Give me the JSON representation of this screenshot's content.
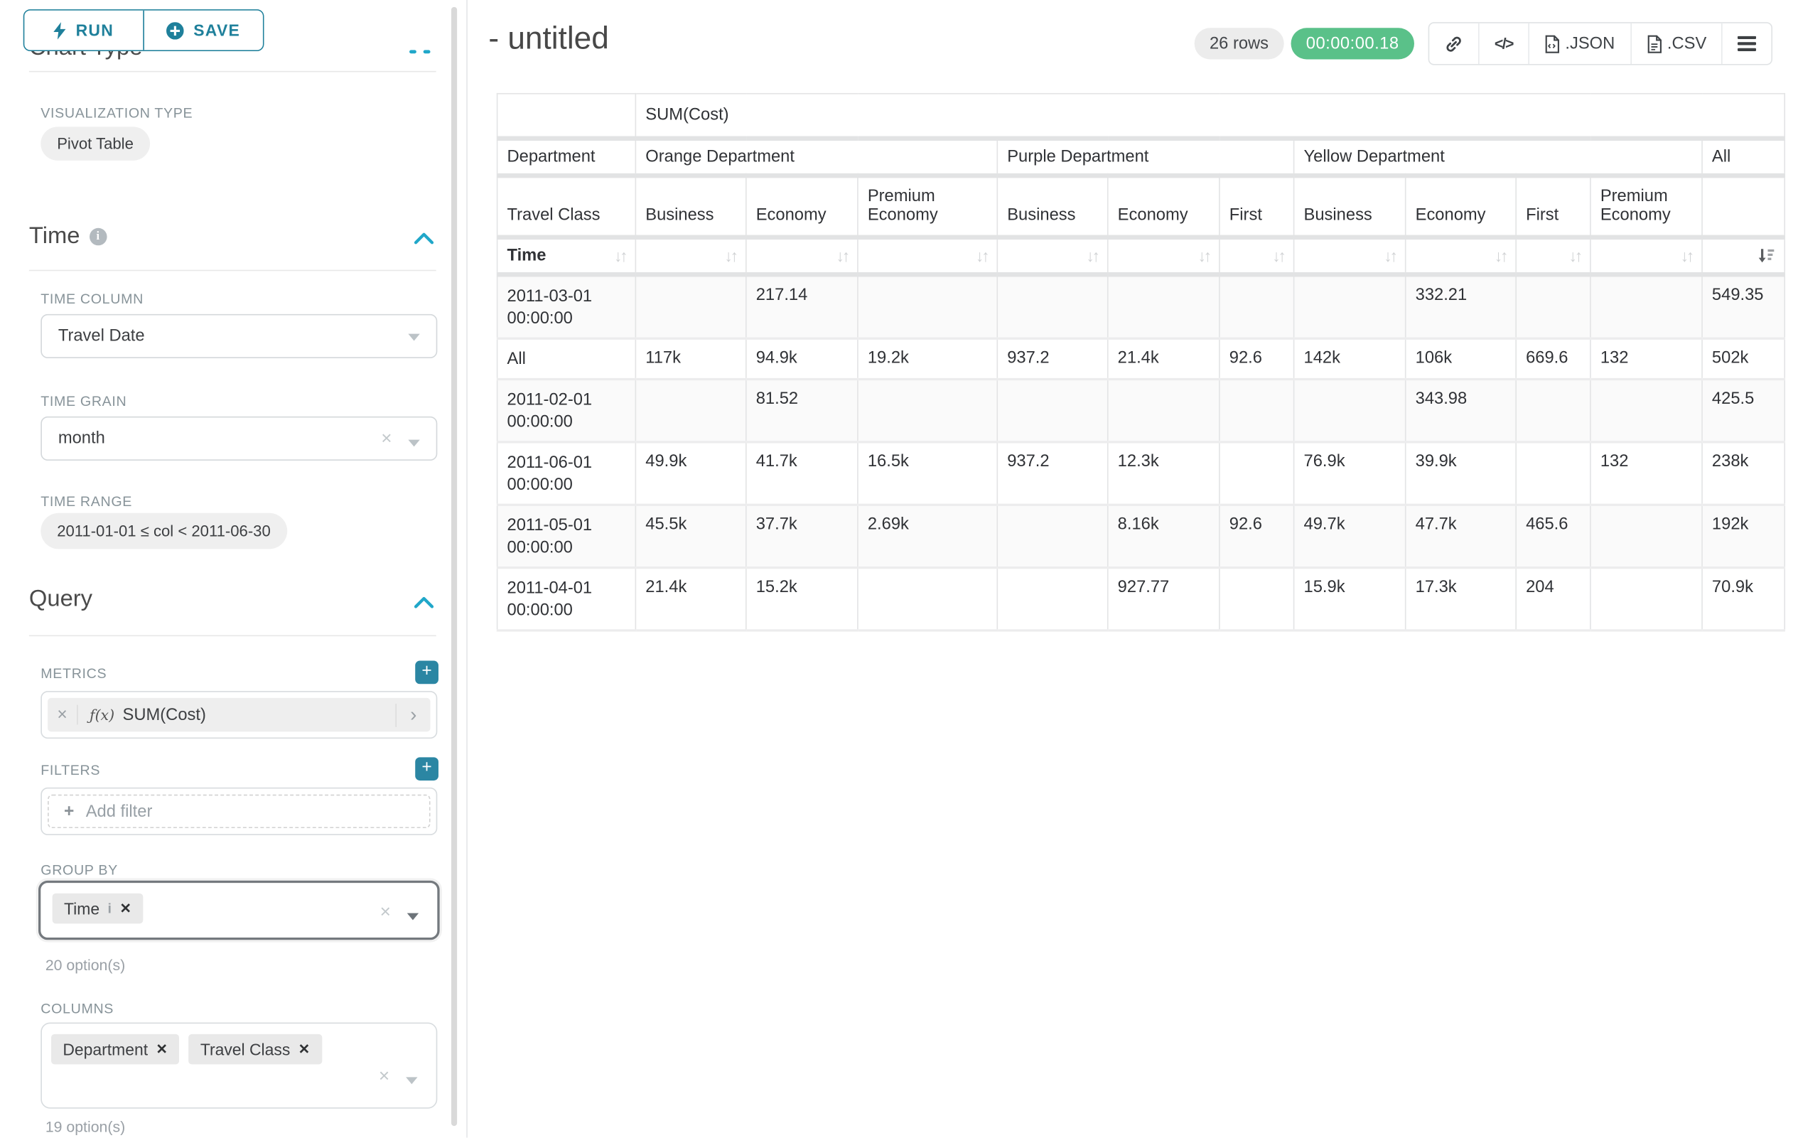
{
  "app": {
    "run_label": "RUN",
    "save_label": "SAVE",
    "section_chart_type": "Chart Type",
    "title": "- untitled",
    "rows_badge": "26 rows",
    "timer": "00:00:00.18",
    "export_json_label": ".JSON",
    "export_csv_label": ".CSV",
    "icons": {
      "run": "bolt",
      "save": "plus-circle",
      "share": "link",
      "embed": "</>",
      "menu": "hamburger",
      "sort_inactive": "↓↑"
    },
    "colors": {
      "primary": "#1F809B",
      "accent": "#20A7C9",
      "success": "#5AC189"
    }
  },
  "sidebar": {
    "viz_type": {
      "label": "VISUALIZATION TYPE",
      "value": "Pivot Table"
    },
    "time": {
      "heading": "Time",
      "time_column": {
        "label": "TIME COLUMN",
        "value": "Travel Date"
      },
      "time_grain": {
        "label": "TIME GRAIN",
        "value": "month"
      },
      "time_range": {
        "label": "TIME RANGE",
        "value": "2011-01-01 ≤ col < 2011-06-30"
      }
    },
    "query": {
      "heading": "Query",
      "metrics": {
        "label": "METRICS",
        "fx": "ƒ(x)",
        "value": "SUM(Cost)"
      },
      "filters": {
        "label": "FILTERS",
        "placeholder": "Add filter"
      },
      "group_by": {
        "label": "GROUP BY",
        "tags": [
          {
            "label": "Time"
          }
        ],
        "options_hint": "20 option(s)"
      },
      "columns": {
        "label": "COLUMNS",
        "tags": [
          {
            "label": "Department"
          },
          {
            "label": "Travel Class"
          }
        ],
        "options_hint": "19 option(s)"
      }
    }
  },
  "table": {
    "metric_header": "SUM(Cost)",
    "corner": {
      "row2": "Department",
      "row3": "Travel Class",
      "row4": "Time"
    },
    "column_groups": [
      {
        "label": "Orange Department",
        "classes": [
          "Business",
          "Economy",
          "Premium Economy"
        ]
      },
      {
        "label": "Purple Department",
        "classes": [
          "Business",
          "Economy",
          "First"
        ]
      },
      {
        "label": "Yellow Department",
        "classes": [
          "Business",
          "Economy",
          "First",
          "Premium Economy"
        ]
      },
      {
        "label": "All",
        "classes": [
          ""
        ]
      }
    ],
    "rows": [
      {
        "label": "2011-03-01 00:00:00",
        "values": [
          "",
          "217.14",
          "",
          "",
          "",
          "",
          "",
          "332.21",
          "",
          "",
          "549.35"
        ]
      },
      {
        "label": "All",
        "values": [
          "117k",
          "94.9k",
          "19.2k",
          "937.2",
          "21.4k",
          "92.6",
          "142k",
          "106k",
          "669.6",
          "132",
          "502k"
        ]
      },
      {
        "label": "2011-02-01 00:00:00",
        "values": [
          "",
          "81.52",
          "",
          "",
          "",
          "",
          "",
          "343.98",
          "",
          "",
          "425.5"
        ]
      },
      {
        "label": "2011-06-01 00:00:00",
        "values": [
          "49.9k",
          "41.7k",
          "16.5k",
          "937.2",
          "12.3k",
          "",
          "76.9k",
          "39.9k",
          "",
          "132",
          "238k"
        ]
      },
      {
        "label": "2011-05-01 00:00:00",
        "values": [
          "45.5k",
          "37.7k",
          "2.69k",
          "",
          "8.16k",
          "92.6",
          "49.7k",
          "47.7k",
          "465.6",
          "",
          "192k"
        ]
      },
      {
        "label": "2011-04-01 00:00:00",
        "values": [
          "21.4k",
          "15.2k",
          "",
          "",
          "927.77",
          "",
          "15.9k",
          "17.3k",
          "204",
          "",
          "70.9k"
        ]
      }
    ]
  },
  "chart_data": {
    "type": "table",
    "title": "SUM(Cost)",
    "row_dimension": "Time",
    "column_dimensions": [
      "Department",
      "Travel Class"
    ],
    "columns": [
      "Orange Department / Business",
      "Orange Department / Economy",
      "Orange Department / Premium Economy",
      "Purple Department / Business",
      "Purple Department / Economy",
      "Purple Department / First",
      "Yellow Department / Business",
      "Yellow Department / Economy",
      "Yellow Department / First",
      "Yellow Department / Premium Economy",
      "All"
    ],
    "rows": [
      [
        "2011-03-01 00:00:00",
        null,
        217.14,
        null,
        null,
        null,
        null,
        null,
        332.21,
        null,
        null,
        549.35
      ],
      [
        "All",
        117000,
        94900,
        19200,
        937.2,
        21400,
        92.6,
        142000,
        106000,
        669.6,
        132,
        502000
      ],
      [
        "2011-02-01 00:00:00",
        null,
        81.52,
        null,
        null,
        null,
        null,
        null,
        343.98,
        null,
        null,
        425.5
      ],
      [
        "2011-06-01 00:00:00",
        49900,
        41700,
        16500,
        937.2,
        12300,
        null,
        76900,
        39900,
        null,
        132,
        238000
      ],
      [
        "2011-05-01 00:00:00",
        45500,
        37700,
        2690,
        null,
        8160,
        92.6,
        49700,
        47700,
        465.6,
        null,
        192000
      ],
      [
        "2011-04-01 00:00:00",
        21400,
        15200,
        null,
        null,
        927.77,
        null,
        15900,
        17300,
        204,
        null,
        70900
      ]
    ]
  }
}
